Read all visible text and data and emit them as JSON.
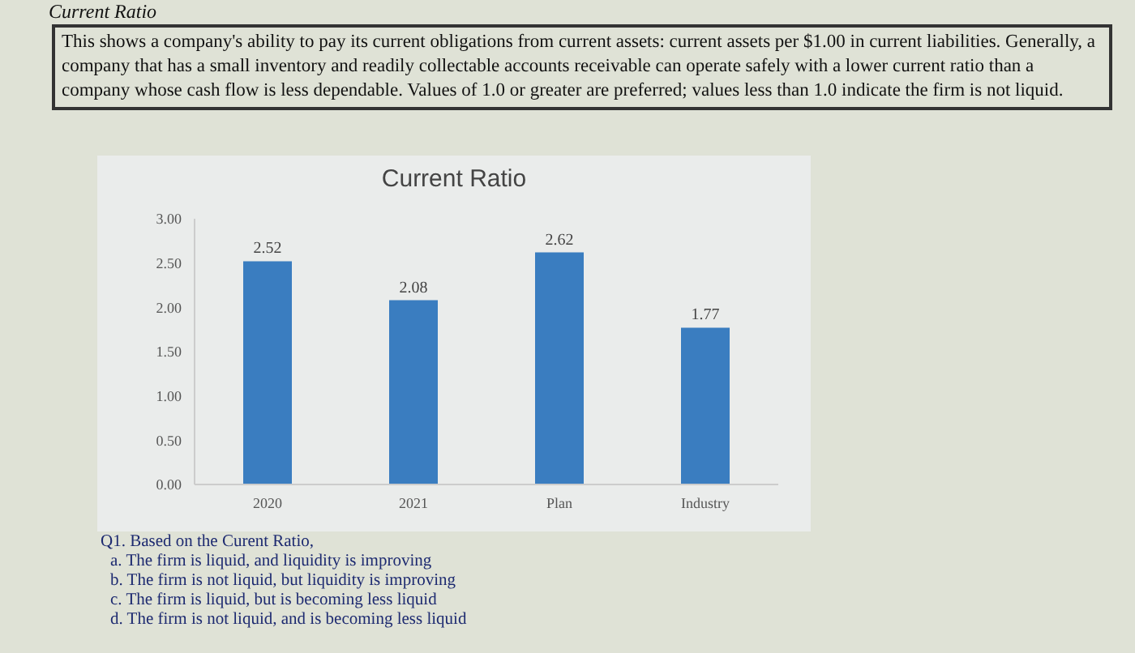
{
  "chart_data": {
    "type": "bar",
    "title": "Current Ratio",
    "categories": [
      "2020",
      "2021",
      "Plan",
      "Industry"
    ],
    "values": [
      2.52,
      2.08,
      2.62,
      1.77
    ],
    "color": "#3a7dc0",
    "ylim": [
      0,
      3
    ],
    "yticks": [
      {
        "value": 0,
        "label": "0.00"
      },
      {
        "value": 0.5,
        "label": "0.50"
      },
      {
        "value": 1,
        "label": "1.00"
      },
      {
        "value": 1.5,
        "label": "1.50"
      },
      {
        "value": 2,
        "label": "2.00"
      },
      {
        "value": 2.5,
        "label": "2.50"
      },
      {
        "value": 3,
        "label": "3.00"
      }
    ],
    "data_labels": true,
    "grid": false,
    "legend": false,
    "annotations": [
      "Current Ratio",
      "This shows a company's ability to pay its current obligations from current assets: current assets per $1.00 in current liabilities.  Generally, a company that has a small inventory and readily collectable accounts receivable can operate safely with a lower current ratio than a company whose cash flow is less dependable.  Values of 1.0 or greater are preferred; values less than 1.0 indicate the firm is not liquid.",
      "Q1. Based on the Curent Ratio,",
      "a. The firm is liquid, and liquidity is improving",
      "b. The firm is not liquid, but liquidity is improving",
      "c. The firm is liquid, but is becoming less liquid",
      "d. The firm is not liquid, and is becoming less liquid"
    ]
  }
}
